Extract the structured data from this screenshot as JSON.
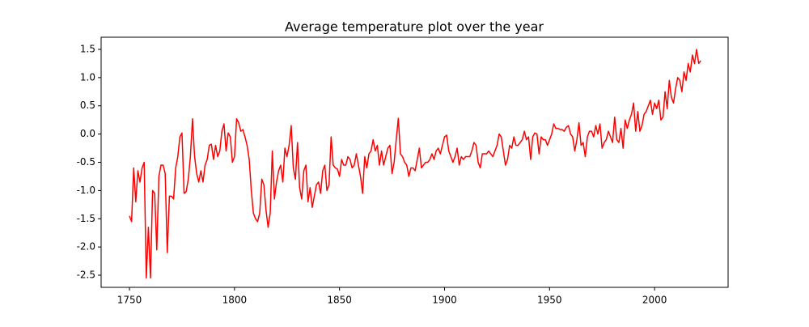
{
  "chart_data": {
    "type": "line",
    "title": "Average temperature plot over the year",
    "x": [
      1750,
      1751,
      1752,
      1753,
      1754,
      1755,
      1756,
      1757,
      1758,
      1759,
      1760,
      1761,
      1762,
      1763,
      1764,
      1765,
      1766,
      1767,
      1768,
      1769,
      1770,
      1771,
      1772,
      1773,
      1774,
      1775,
      1776,
      1777,
      1778,
      1779,
      1780,
      1781,
      1782,
      1783,
      1784,
      1785,
      1786,
      1787,
      1788,
      1789,
      1790,
      1791,
      1792,
      1793,
      1794,
      1795,
      1796,
      1797,
      1798,
      1799,
      1800,
      1801,
      1802,
      1803,
      1804,
      1805,
      1806,
      1807,
      1808,
      1809,
      1810,
      1811,
      1812,
      1813,
      1814,
      1815,
      1816,
      1817,
      1818,
      1819,
      1820,
      1821,
      1822,
      1823,
      1824,
      1825,
      1826,
      1827,
      1828,
      1829,
      1830,
      1831,
      1832,
      1833,
      1834,
      1835,
      1836,
      1837,
      1838,
      1839,
      1840,
      1841,
      1842,
      1843,
      1844,
      1845,
      1846,
      1847,
      1848,
      1849,
      1850,
      1851,
      1852,
      1853,
      1854,
      1855,
      1856,
      1857,
      1858,
      1859,
      1860,
      1861,
      1862,
      1863,
      1864,
      1865,
      1866,
      1867,
      1868,
      1869,
      1870,
      1871,
      1872,
      1873,
      1874,
      1875,
      1876,
      1877,
      1878,
      1879,
      1880,
      1881,
      1882,
      1883,
      1884,
      1885,
      1886,
      1887,
      1888,
      1889,
      1890,
      1891,
      1892,
      1893,
      1894,
      1895,
      1896,
      1897,
      1898,
      1899,
      1900,
      1901,
      1902,
      1903,
      1904,
      1905,
      1906,
      1907,
      1908,
      1909,
      1910,
      1911,
      1912,
      1913,
      1914,
      1915,
      1916,
      1917,
      1918,
      1919,
      1920,
      1921,
      1922,
      1923,
      1924,
      1925,
      1926,
      1927,
      1928,
      1929,
      1930,
      1931,
      1932,
      1933,
      1934,
      1935,
      1936,
      1937,
      1938,
      1939,
      1940,
      1941,
      1942,
      1943,
      1944,
      1945,
      1946,
      1947,
      1948,
      1949,
      1950,
      1951,
      1952,
      1953,
      1954,
      1955,
      1956,
      1957,
      1958,
      1959,
      1960,
      1961,
      1962,
      1963,
      1964,
      1965,
      1966,
      1967,
      1968,
      1969,
      1970,
      1971,
      1972,
      1973,
      1974,
      1975,
      1976,
      1977,
      1978,
      1979,
      1980,
      1981,
      1982,
      1983,
      1984,
      1985,
      1986,
      1987,
      1988,
      1989,
      1990,
      1991,
      1992,
      1993,
      1994,
      1995,
      1996,
      1997,
      1998,
      1999,
      2000,
      2001,
      2002,
      2003,
      2004,
      2005,
      2006,
      2007,
      2008,
      2009,
      2010,
      2011,
      2012,
      2013,
      2014,
      2015,
      2016,
      2017,
      2018,
      2019,
      2020,
      2021,
      2022
    ],
    "series": [
      {
        "color": "#ff0000",
        "values": [
          -1.45,
          -1.55,
          -0.6,
          -1.2,
          -0.65,
          -0.85,
          -0.6,
          -0.5,
          -2.55,
          -1.65,
          -2.55,
          -1.0,
          -1.05,
          -2.05,
          -0.75,
          -0.55,
          -0.55,
          -0.7,
          -2.1,
          -1.1,
          -1.1,
          -1.15,
          -0.6,
          -0.4,
          -0.05,
          0.02,
          -1.05,
          -1.02,
          -0.8,
          -0.4,
          0.27,
          -0.4,
          -0.7,
          -0.85,
          -0.65,
          -0.85,
          -0.55,
          -0.45,
          -0.2,
          -0.18,
          -0.45,
          -0.2,
          -0.4,
          -0.3,
          0.05,
          0.18,
          -0.3,
          0.02,
          -0.05,
          -0.5,
          -0.4,
          0.27,
          0.2,
          0.05,
          0.08,
          -0.05,
          -0.2,
          -0.45,
          -1.0,
          -1.4,
          -1.5,
          -1.55,
          -1.4,
          -0.8,
          -0.9,
          -1.35,
          -1.65,
          -1.4,
          -0.3,
          -1.15,
          -0.85,
          -0.65,
          -0.55,
          -0.85,
          -0.25,
          -0.4,
          -0.2,
          0.15,
          -0.6,
          -0.8,
          -0.15,
          -0.95,
          -1.15,
          -0.65,
          -0.55,
          -1.2,
          -0.95,
          -1.3,
          -1.1,
          -0.9,
          -0.85,
          -1.05,
          -0.65,
          -0.55,
          -1.0,
          -0.9,
          -0.05,
          -0.55,
          -0.6,
          -0.62,
          -0.75,
          -0.45,
          -0.55,
          -0.55,
          -0.4,
          -0.45,
          -0.6,
          -0.55,
          -0.35,
          -0.55,
          -0.75,
          -1.05,
          -0.4,
          -0.6,
          -0.35,
          -0.3,
          -0.1,
          -0.3,
          -0.2,
          -0.55,
          -0.3,
          -0.55,
          -0.4,
          -0.25,
          -0.2,
          -0.7,
          -0.5,
          -0.1,
          0.28,
          -0.35,
          -0.4,
          -0.5,
          -0.55,
          -0.75,
          -0.6,
          -0.6,
          -0.65,
          -0.45,
          -0.25,
          -0.6,
          -0.55,
          -0.5,
          -0.5,
          -0.45,
          -0.35,
          -0.45,
          -0.3,
          -0.25,
          -0.35,
          -0.2,
          -0.05,
          -0.02,
          -0.3,
          -0.4,
          -0.5,
          -0.4,
          -0.25,
          -0.55,
          -0.4,
          -0.45,
          -0.4,
          -0.4,
          -0.4,
          -0.3,
          -0.15,
          -0.2,
          -0.5,
          -0.6,
          -0.35,
          -0.35,
          -0.35,
          -0.3,
          -0.35,
          -0.4,
          -0.3,
          -0.2,
          0.0,
          -0.05,
          -0.3,
          -0.55,
          -0.45,
          -0.2,
          -0.25,
          -0.05,
          -0.2,
          -0.2,
          -0.15,
          -0.1,
          0.05,
          -0.1,
          -0.05,
          -0.45,
          -0.05,
          0.02,
          0.0,
          -0.35,
          -0.05,
          -0.1,
          -0.1,
          -0.2,
          -0.1,
          0.0,
          0.18,
          0.1,
          0.1,
          0.08,
          0.08,
          0.05,
          0.12,
          0.15,
          0.0,
          -0.05,
          -0.3,
          -0.1,
          0.2,
          -0.2,
          -0.15,
          -0.4,
          -0.05,
          0.05,
          0.05,
          -0.05,
          0.15,
          0.0,
          0.18,
          -0.25,
          -0.15,
          -0.1,
          0.05,
          -0.05,
          -0.15,
          0.3,
          -0.1,
          -0.15,
          0.1,
          -0.25,
          0.25,
          0.1,
          0.25,
          0.35,
          0.55,
          0.05,
          0.4,
          0.05,
          0.15,
          0.35,
          0.4,
          0.5,
          0.6,
          0.35,
          0.55,
          0.45,
          0.6,
          0.25,
          0.3,
          0.75,
          0.45,
          0.95,
          0.65,
          0.55,
          0.8,
          1.0,
          0.95,
          0.75,
          1.1,
          0.95,
          1.25,
          1.1,
          1.4,
          1.25,
          1.5,
          1.25,
          1.3
        ]
      }
    ],
    "xlim": [
      1736.5,
      2035
    ],
    "xticks": [
      1750,
      1800,
      1850,
      1900,
      1950,
      2000
    ],
    "ylim": [
      -2.715,
      1.715
    ],
    "yticks": [
      -2.5,
      {
        "value": -2,
        "label": "-2.0"
      },
      -1.5,
      {
        "value": -1,
        "label": "-1.0"
      },
      -0.5,
      {
        "value": 0,
        "label": "0.0"
      },
      0.5,
      {
        "value": 1,
        "label": "1.0"
      },
      1.5
    ]
  }
}
